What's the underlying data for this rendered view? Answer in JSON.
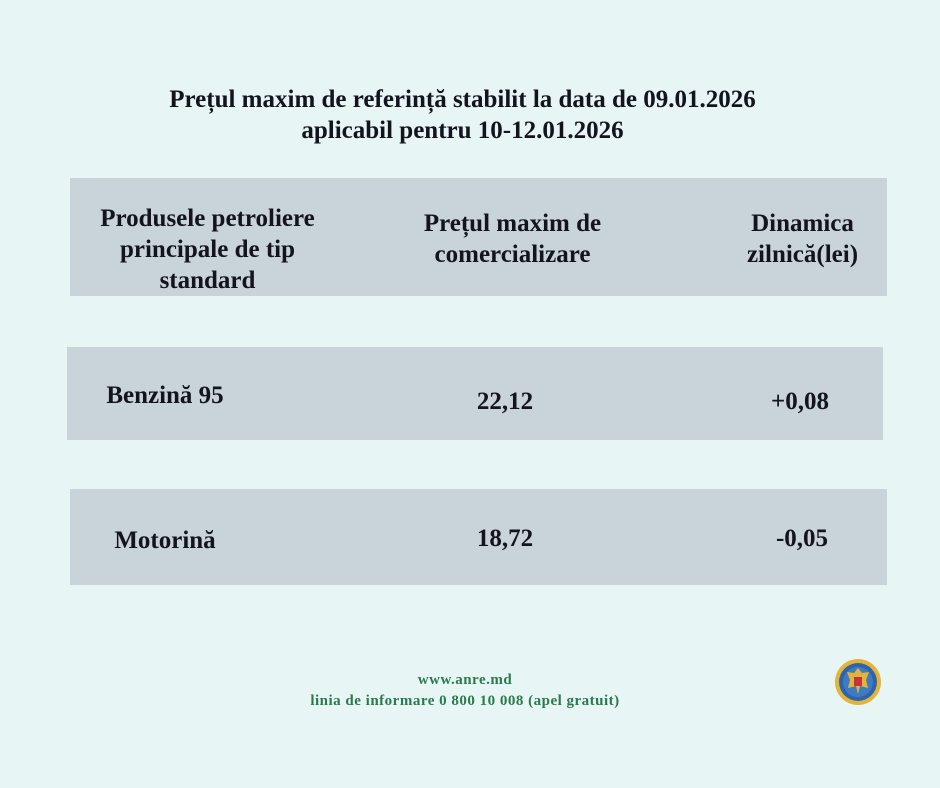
{
  "title": {
    "line1": "Prețul maxim de referință stabilit la data de 09.01.2026",
    "line2": "aplicabil pentru 10-12.01.2026"
  },
  "table": {
    "headers": [
      "Produsele petroliere principale de tip standard",
      "Prețul maxim de comercializare",
      "Dinamica zilnică(lei)"
    ],
    "rows": [
      {
        "product": "Benzină 95",
        "price": "22,12",
        "change": "+0,08"
      },
      {
        "product": "Motorină",
        "price": "18,72",
        "change": "-0,05"
      }
    ]
  },
  "footer": {
    "website": "www.anre.md",
    "hotline": "linia de informare 0 800 10 008 (apel gratuit)"
  },
  "logo": {
    "icon": "moldova-coat-of-arms-seal-icon"
  },
  "colors": {
    "background": "#e7f5f4",
    "row_bg": "#c9d3da",
    "footer_text": "#2a7a4c"
  }
}
